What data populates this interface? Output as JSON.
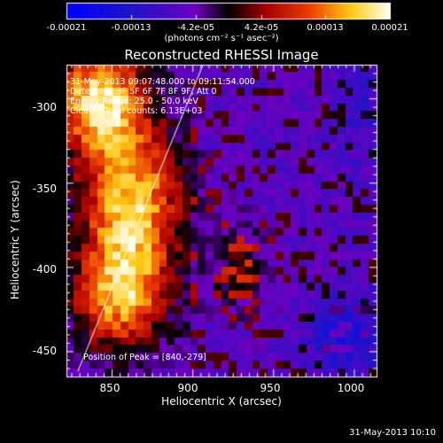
{
  "chart_data": {
    "type": "heatmap",
    "title": "Reconstructed RHESSI Image",
    "xlabel": "Heliocentric X (arcsec)",
    "ylabel": "Heliocentric Y (arcsec)",
    "xlim": [
      822,
      1014
    ],
    "ylim": [
      -465,
      -280
    ],
    "x_ticks": [
      "850",
      "900",
      "950",
      "1000"
    ],
    "y_ticks": [
      "-300",
      "-350",
      "-400",
      "-450"
    ],
    "colorbar": {
      "ticks": [
        "-0.00021",
        "-0.00013",
        "-4.2e-05",
        "4.2e-05",
        "0.00013",
        "0.00021"
      ],
      "range": [
        -0.00021,
        0.00021
      ],
      "unit": "(photons cm⁻² s⁻¹ asec⁻²)"
    },
    "annotations": [
      "31-May-2013 09:07:48.000 to 09:11:54.000",
      "Detectors: 3F 5F 6F 7F 8F 9F, Att 0",
      "Energy Range: 25.0 - 50.0 keV",
      "Clean    Total counts: 6.13E+03"
    ],
    "peak_label": "Position of Peak = [840,-279]",
    "limb_line": {
      "x": [
        829,
        907
      ],
      "y": [
        -462,
        -279
      ]
    }
  },
  "footer": {
    "timestamp": "31-May-2013 10:10"
  },
  "colors": {
    "background": "#000000",
    "text": "#ffffff"
  }
}
